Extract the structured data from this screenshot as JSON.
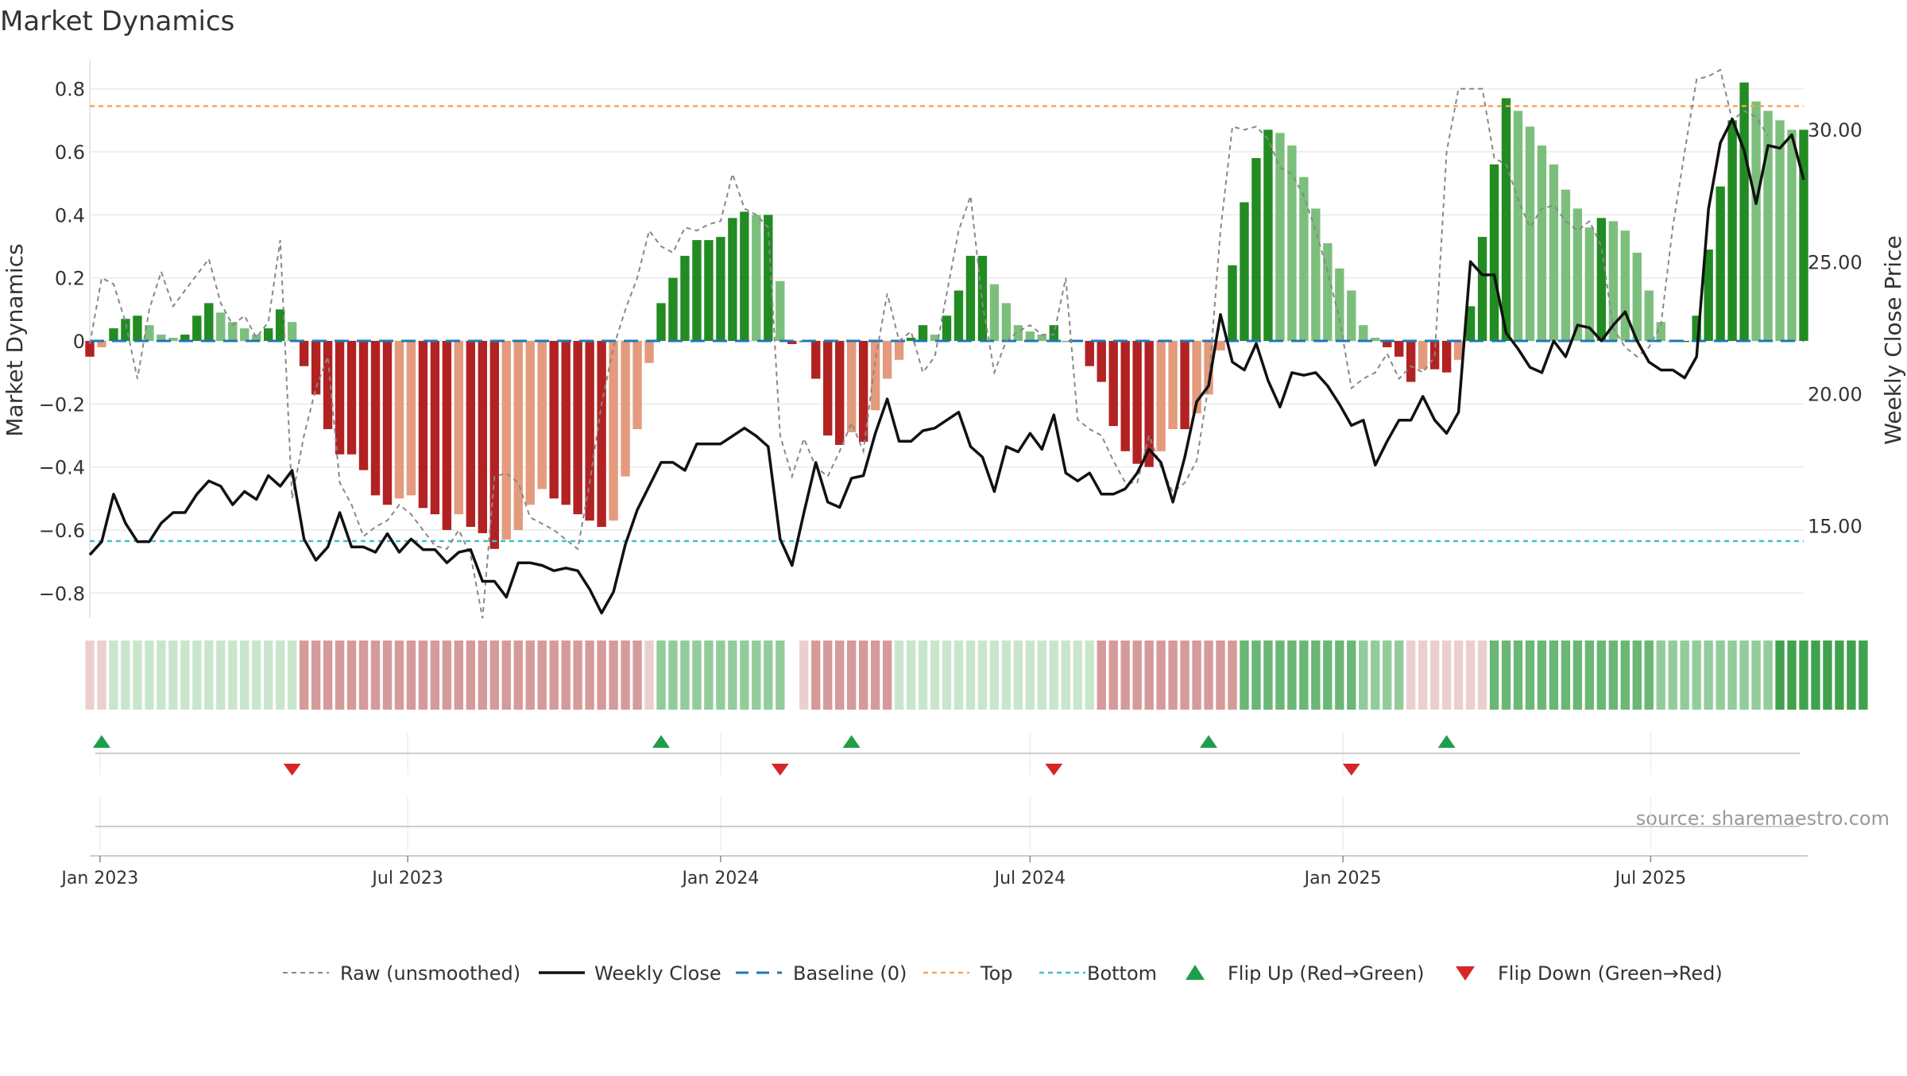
{
  "title": "Market Dynamics",
  "source_note": "source: sharemaestro.com",
  "colors": {
    "strong_green": "#228b22",
    "light_green": "#7cbf7c",
    "strong_red": "#b22222",
    "light_red": "#e39a7d",
    "raw_line": "#888888",
    "close_line": "#111111",
    "baseline": "#1f77b4",
    "top": "#f4a460",
    "bottom": "#3fc1c9",
    "flip_up": "#1e9e4a",
    "flip_down": "#d62728",
    "grid": "#eaeaea"
  },
  "chart_data": {
    "type": "bar",
    "title": "Market Dynamics",
    "xlabel": "",
    "ylabel": "Market Dynamics",
    "y2label": "Weekly Close Price",
    "ylim": [
      -0.88,
      0.88
    ],
    "y2lim": [
      11.5,
      32.5
    ],
    "yticks": [
      -0.8,
      -0.6,
      -0.4,
      -0.2,
      0,
      0.2,
      0.4,
      0.6,
      0.8
    ],
    "ytick_labels": [
      "−0.8",
      "−0.6",
      "−0.4",
      "−0.2",
      "0",
      "0.2",
      "0.4",
      "0.6",
      "0.8"
    ],
    "y2ticks": [
      15,
      20,
      25,
      30
    ],
    "y2tick_labels": [
      "15.00",
      "20.00",
      "25.00",
      "30.00"
    ],
    "x_range": [
      "2022-12-26",
      "2025-09-29"
    ],
    "x_ticks": [
      {
        "date": "2023-01-01",
        "label": "Jan 2023"
      },
      {
        "date": "2023-07-01",
        "label": "Jul 2023"
      },
      {
        "date": "2024-01-01",
        "label": "Jan 2024"
      },
      {
        "date": "2024-07-01",
        "label": "Jul 2024"
      },
      {
        "date": "2025-01-01",
        "label": "Jan 2025"
      },
      {
        "date": "2025-07-01",
        "label": "Jul 2025"
      }
    ],
    "start_date": "2022-12-26",
    "interval_days": 7,
    "values": [
      -0.05,
      -0.02,
      0.04,
      0.07,
      0.08,
      0.05,
      0.02,
      0.01,
      0.02,
      0.08,
      0.12,
      0.09,
      0.06,
      0.04,
      0.02,
      0.04,
      0.1,
      0.06,
      -0.08,
      -0.17,
      -0.28,
      -0.36,
      -0.36,
      -0.41,
      -0.49,
      -0.52,
      -0.5,
      -0.49,
      -0.53,
      -0.55,
      -0.6,
      -0.55,
      -0.59,
      -0.61,
      -0.66,
      -0.63,
      -0.6,
      -0.52,
      -0.47,
      -0.5,
      -0.52,
      -0.55,
      -0.57,
      -0.59,
      -0.57,
      -0.43,
      -0.28,
      -0.07,
      0.12,
      0.2,
      0.27,
      0.32,
      0.32,
      0.33,
      0.39,
      0.41,
      0.4,
      0.4,
      0.19,
      -0.01,
      0.0,
      -0.12,
      -0.3,
      -0.33,
      -0.29,
      -0.32,
      -0.22,
      -0.12,
      -0.06,
      0.01,
      0.05,
      0.02,
      0.08,
      0.16,
      0.27,
      0.27,
      0.18,
      0.12,
      0.05,
      0.03,
      0.02,
      0.05,
      0.0,
      0.0,
      -0.08,
      -0.13,
      -0.27,
      -0.35,
      -0.39,
      -0.4,
      -0.35,
      -0.28,
      -0.28,
      -0.23,
      -0.17,
      -0.03,
      0.24,
      0.44,
      0.58,
      0.67,
      0.66,
      0.62,
      0.52,
      0.42,
      0.31,
      0.23,
      0.16,
      0.05,
      0.01,
      -0.02,
      -0.05,
      -0.13,
      -0.09,
      -0.09,
      -0.1,
      -0.06,
      0.11,
      0.33,
      0.56,
      0.77,
      0.73,
      0.68,
      0.62,
      0.56,
      0.48,
      0.42,
      0.36,
      0.39,
      0.38,
      0.35,
      0.28,
      0.16,
      0.06,
      0.0,
      0.0,
      0.08,
      0.29,
      0.49,
      0.7,
      0.82,
      0.76,
      0.73,
      0.7,
      0.67,
      0.67
    ],
    "raw": [
      -0.01,
      0.2,
      0.18,
      0.06,
      -0.12,
      0.1,
      0.22,
      0.11,
      0.16,
      0.21,
      0.26,
      0.12,
      0.05,
      0.08,
      0.01,
      0.06,
      0.32,
      -0.5,
      -0.3,
      -0.15,
      -0.05,
      -0.45,
      -0.52,
      -0.62,
      -0.59,
      -0.57,
      -0.52,
      -0.55,
      -0.6,
      -0.65,
      -0.66,
      -0.6,
      -0.68,
      -0.88,
      -0.43,
      -0.42,
      -0.45,
      -0.56,
      -0.58,
      -0.6,
      -0.63,
      -0.66,
      -0.45,
      -0.2,
      -0.02,
      0.1,
      0.2,
      0.35,
      0.3,
      0.28,
      0.36,
      0.35,
      0.37,
      0.38,
      0.53,
      0.42,
      0.4,
      0.36,
      -0.3,
      -0.43,
      -0.31,
      -0.4,
      -0.43,
      -0.35,
      -0.26,
      -0.35,
      -0.06,
      0.15,
      0.0,
      0.03,
      -0.1,
      -0.05,
      0.15,
      0.35,
      0.46,
      0.12,
      -0.1,
      0.0,
      0.03,
      0.05,
      0.02,
      0.02,
      0.2,
      -0.25,
      -0.28,
      -0.3,
      -0.38,
      -0.45,
      -0.45,
      -0.3,
      -0.4,
      -0.48,
      -0.45,
      -0.38,
      -0.14,
      0.35,
      0.68,
      0.67,
      0.68,
      0.64,
      0.55,
      0.53,
      0.46,
      0.35,
      0.22,
      0.07,
      -0.15,
      -0.12,
      -0.1,
      -0.04,
      -0.12,
      -0.08,
      -0.1,
      -0.05,
      0.6,
      0.8,
      0.8,
      0.8,
      0.58,
      0.56,
      0.45,
      0.36,
      0.42,
      0.43,
      0.38,
      0.35,
      0.38,
      0.3,
      0.04,
      -0.02,
      -0.05,
      -0.02,
      0.05,
      0.36,
      0.6,
      0.83,
      0.84,
      0.86,
      0.7,
      0.73,
      0.71,
      0.65
    ],
    "close": [
      13.9,
      14.4,
      16.2,
      15.1,
      14.4,
      14.4,
      15.1,
      15.5,
      15.5,
      16.2,
      16.7,
      16.5,
      15.8,
      16.3,
      16.0,
      16.9,
      16.5,
      17.1,
      14.5,
      13.7,
      14.2,
      15.5,
      14.2,
      14.2,
      14.0,
      14.7,
      14.0,
      14.5,
      14.1,
      14.1,
      13.6,
      14.0,
      14.1,
      12.9,
      12.9,
      12.3,
      13.6,
      13.6,
      13.5,
      13.3,
      13.4,
      13.3,
      12.6,
      11.7,
      12.5,
      14.3,
      15.6,
      16.5,
      17.4,
      17.4,
      17.1,
      18.1,
      18.1,
      18.1,
      18.4,
      18.7,
      18.4,
      18.0,
      14.5,
      13.5,
      15.5,
      17.4,
      15.9,
      15.7,
      16.8,
      16.9,
      18.5,
      19.8,
      18.2,
      18.2,
      18.6,
      18.7,
      19.0,
      19.3,
      18.0,
      17.6,
      16.3,
      18.0,
      17.8,
      18.5,
      17.9,
      19.2,
      17.0,
      16.7,
      17.0,
      16.2,
      16.2,
      16.4,
      17.0,
      17.9,
      17.4,
      15.9,
      17.6,
      19.7,
      20.3,
      23.0,
      21.2,
      20.9,
      21.9,
      20.5,
      19.5,
      20.8,
      20.7,
      20.8,
      20.3,
      19.6,
      18.8,
      19.0,
      17.3,
      18.2,
      19.0,
      19.0,
      19.9,
      19.0,
      18.5,
      19.3,
      25.0,
      24.5,
      24.5,
      22.3,
      21.7,
      21.0,
      20.8,
      22.0,
      21.4,
      22.6,
      22.5,
      22.0,
      22.6,
      23.1,
      22.0,
      21.2,
      20.9,
      20.9,
      20.6,
      21.4,
      27.0,
      29.5,
      30.4,
      29.2,
      27.2,
      29.4,
      29.3,
      29.8,
      28.1
    ],
    "baseline": 0,
    "top": 0.745,
    "bottom": -0.635,
    "flip_up_dates": [
      "2023-01-02",
      "2023-11-27",
      "2024-03-18",
      "2024-10-14",
      "2025-03-03"
    ],
    "flip_down_dates": [
      "2023-04-24",
      "2024-02-05",
      "2024-07-15",
      "2025-01-06"
    ],
    "regime": [
      0,
      0,
      1,
      1,
      1,
      1,
      1,
      1,
      1,
      1,
      1,
      1,
      1,
      1,
      1,
      1,
      1,
      1,
      2,
      2,
      2,
      2,
      2,
      2,
      2,
      2,
      2,
      2,
      2,
      2,
      2,
      2,
      2,
      2,
      2,
      2,
      2,
      2,
      2,
      2,
      2,
      2,
      2,
      2,
      2,
      2,
      2,
      0,
      3,
      3,
      3,
      3,
      3,
      3,
      3,
      3,
      3,
      3,
      3,
      -1,
      0,
      2,
      2,
      2,
      2,
      2,
      2,
      2,
      1,
      1,
      1,
      1,
      1,
      1,
      1,
      1,
      1,
      1,
      1,
      1,
      1,
      1,
      1,
      1,
      1,
      2,
      2,
      2,
      2,
      2,
      2,
      2,
      2,
      2,
      2,
      2,
      2,
      4,
      4,
      4,
      4,
      4,
      4,
      4,
      4,
      4,
      4,
      3,
      3,
      3,
      3,
      0,
      0,
      0,
      0,
      0,
      0,
      0,
      4,
      4,
      4,
      4,
      4,
      4,
      4,
      4,
      4,
      4,
      4,
      4,
      4,
      4,
      3,
      3,
      3,
      3,
      3,
      3,
      3,
      3,
      3,
      3,
      5,
      5,
      5,
      5,
      5,
      5,
      5,
      5
    ],
    "regime_colors": [
      "#ebcfcf",
      "#c9e6cc",
      "#d69a9a",
      "#93cc9c",
      "#6bb775",
      "#41a24e"
    ]
  },
  "legend": [
    {
      "key": "raw",
      "label": "Raw (unsmoothed)"
    },
    {
      "key": "close",
      "label": "Weekly Close"
    },
    {
      "key": "baseline",
      "label": "Baseline (0)"
    },
    {
      "key": "top",
      "label": "Top"
    },
    {
      "key": "bottom",
      "label": "Bottom"
    },
    {
      "key": "flip_up",
      "label": "Flip Up (Red→Green)"
    },
    {
      "key": "flip_down",
      "label": "Flip Down (Green→Red)"
    }
  ]
}
